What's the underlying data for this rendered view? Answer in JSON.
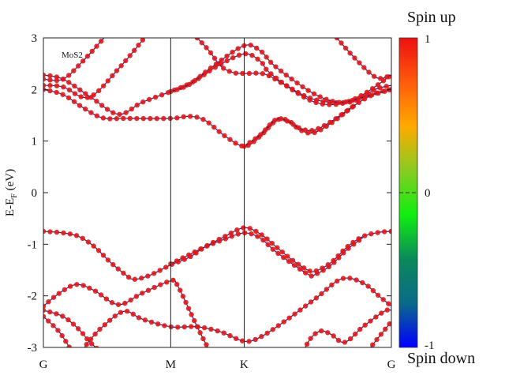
{
  "chart_data": {
    "type": "line",
    "title": "",
    "annotation": "MoS2",
    "ylabel": "E-E",
    "ylabel_sub": "F",
    "ylabel_unit": "(eV)",
    "xlabel": "",
    "ylim": [
      -3,
      3
    ],
    "yticks": [
      "3",
      "2",
      "1",
      "0",
      "-1",
      "-2",
      "-3"
    ],
    "ytick_values": [
      3,
      2,
      1,
      0,
      -1,
      -2,
      -3
    ],
    "xlim": [
      0,
      1.577
    ],
    "high_symmetry_points": [
      {
        "label": "G",
        "k": 0
      },
      {
        "label": "M",
        "k": 0.577
      },
      {
        "label": "K",
        "k": 0.91
      },
      {
        "label": "G",
        "k": 1.577
      }
    ],
    "colorbar": {
      "top_label": "Spin up",
      "bottom_label": "Spin down",
      "ticks": [
        "1",
        "0",
        "-1"
      ],
      "tick_values": [
        1,
        0,
        -1
      ],
      "range": [
        -1,
        1
      ],
      "colors": [
        "#0000ff",
        "#0a6a8a",
        "#0a8a5a",
        "#10ee10",
        "#88cc20",
        "#ffaa00",
        "#ff5a0a",
        "#ee1010"
      ]
    },
    "marker_color": "#e01818",
    "line_color": "#20208a",
    "bands": [
      {
        "name": "cb1",
        "points": [
          [
            0,
            2.0
          ],
          [
            0.089,
            1.9
          ],
          [
            0.179,
            1.65
          ],
          [
            0.268,
            1.45
          ],
          [
            0.375,
            1.44
          ],
          [
            0.577,
            1.44
          ],
          [
            0.662,
            1.48
          ],
          [
            0.733,
            1.4
          ],
          [
            0.822,
            1.1
          ],
          [
            0.91,
            0.9
          ],
          [
            0.983,
            1.1
          ],
          [
            1.055,
            1.4
          ],
          [
            1.109,
            1.4
          ],
          [
            1.162,
            1.22
          ],
          [
            1.223,
            1.16
          ],
          [
            1.305,
            1.35
          ],
          [
            1.413,
            1.7
          ],
          [
            1.502,
            1.92
          ],
          [
            1.577,
            2.0
          ]
        ]
      },
      {
        "name": "cb1-split",
        "points": [
          [
            0.91,
            0.9
          ],
          [
            0.983,
            1.12
          ],
          [
            1.055,
            1.42
          ],
          [
            1.109,
            1.38
          ],
          [
            1.162,
            1.25
          ],
          [
            1.223,
            1.21
          ],
          [
            1.305,
            1.38
          ],
          [
            1.413,
            1.7
          ]
        ]
      },
      {
        "name": "cb2",
        "points": [
          [
            0,
            2.08
          ],
          [
            0.089,
            2.05
          ],
          [
            0.207,
            1.85
          ],
          [
            0.34,
            2.4
          ],
          [
            0.458,
            3.0
          ]
        ]
      },
      {
        "name": "cb3",
        "points": [
          [
            0,
            2.28
          ],
          [
            0.089,
            2.2
          ],
          [
            0.215,
            1.85
          ],
          [
            0.34,
            1.52
          ],
          [
            0.447,
            1.75
          ],
          [
            0.577,
            1.96
          ],
          [
            0.679,
            2.15
          ],
          [
            0.787,
            2.45
          ],
          [
            0.91,
            2.69
          ],
          [
            0.983,
            2.55
          ],
          [
            1.019,
            2.35
          ],
          [
            1.126,
            2.0
          ],
          [
            1.234,
            1.75
          ],
          [
            1.341,
            1.72
          ],
          [
            1.448,
            1.9
          ],
          [
            1.577,
            2.28
          ]
        ]
      },
      {
        "name": "cb4",
        "points": [
          [
            0.697,
            3.0
          ],
          [
            0.751,
            2.75
          ],
          [
            0.805,
            2.45
          ],
          [
            0.858,
            2.33
          ],
          [
            0.91,
            2.31
          ],
          [
            1.001,
            2.3
          ],
          [
            1.091,
            2.1
          ],
          [
            1.198,
            1.85
          ],
          [
            1.305,
            1.75
          ],
          [
            1.413,
            1.78
          ],
          [
            1.502,
            2.0
          ],
          [
            1.577,
            2.08
          ]
        ]
      },
      {
        "name": "cb5",
        "points": [
          [
            0,
            2.2
          ],
          [
            0.089,
            2.2
          ],
          [
            0.179,
            2.55
          ],
          [
            0.275,
            3.0
          ]
        ]
      },
      {
        "name": "cb6",
        "points": [
          [
            1.33,
            3.0
          ],
          [
            1.413,
            2.6
          ],
          [
            1.509,
            2.23
          ],
          [
            1.577,
            2.28
          ]
        ]
      },
      {
        "name": "cb7",
        "points": [
          [
            0.577,
            1.96
          ],
          [
            0.662,
            2.1
          ],
          [
            0.769,
            2.45
          ],
          [
            0.91,
            2.85
          ],
          [
            0.983,
            2.75
          ],
          [
            1.037,
            2.5
          ],
          [
            1.126,
            2.2
          ],
          [
            1.234,
            1.9
          ],
          [
            1.341,
            1.75
          ],
          [
            1.448,
            1.85
          ],
          [
            1.577,
            2.0
          ]
        ]
      },
      {
        "name": "vb1",
        "points": [
          [
            0,
            -0.75
          ],
          [
            0.089,
            -0.78
          ],
          [
            0.161,
            -0.85
          ],
          [
            0.232,
            -1.05
          ],
          [
            0.304,
            -1.35
          ],
          [
            0.375,
            -1.6
          ],
          [
            0.411,
            -1.68
          ],
          [
            0.483,
            -1.6
          ],
          [
            0.577,
            -1.4
          ],
          [
            0.662,
            -1.25
          ],
          [
            0.733,
            -1.05
          ],
          [
            0.822,
            -0.85
          ],
          [
            0.91,
            -0.68
          ],
          [
            0.983,
            -0.8
          ],
          [
            1.055,
            -1.05
          ],
          [
            1.126,
            -1.3
          ],
          [
            1.198,
            -1.5
          ],
          [
            1.234,
            -1.52
          ],
          [
            1.305,
            -1.35
          ],
          [
            1.377,
            -1.05
          ],
          [
            1.448,
            -0.85
          ],
          [
            1.52,
            -0.77
          ],
          [
            1.577,
            -0.75
          ]
        ]
      },
      {
        "name": "vb2",
        "points": [
          [
            0.577,
            -1.38
          ],
          [
            0.662,
            -1.2
          ],
          [
            0.733,
            -1.05
          ],
          [
            0.822,
            -0.9
          ],
          [
            0.91,
            -0.78
          ],
          [
            0.983,
            -0.88
          ],
          [
            1.055,
            -1.15
          ],
          [
            1.198,
            -1.58
          ],
          [
            1.234,
            -1.58
          ],
          [
            1.305,
            -1.4
          ],
          [
            1.377,
            -1.1
          ],
          [
            1.448,
            -0.87
          ]
        ]
      },
      {
        "name": "vb3",
        "points": [
          [
            0,
            -2.2
          ],
          [
            0.072,
            -1.95
          ],
          [
            0.15,
            -1.78
          ],
          [
            0.232,
            -1.9
          ],
          [
            0.34,
            -2.17
          ],
          [
            0.447,
            -1.95
          ],
          [
            0.577,
            -1.71
          ],
          [
            0.608,
            -1.8
          ],
          [
            0.697,
            -2.6
          ],
          [
            0.751,
            -3.05
          ]
        ]
      },
      {
        "name": "vb4",
        "points": [
          [
            0,
            -2.28
          ],
          [
            0.089,
            -2.4
          ],
          [
            0.161,
            -2.65
          ],
          [
            0.207,
            -2.88
          ],
          [
            0.25,
            -3.05
          ]
        ]
      },
      {
        "name": "vb5",
        "points": [
          [
            0.179,
            -3.05
          ],
          [
            0.207,
            -2.88
          ],
          [
            0.268,
            -2.6
          ],
          [
            0.365,
            -2.3
          ],
          [
            0.447,
            -2.45
          ],
          [
            0.577,
            -2.6
          ],
          [
            0.697,
            -2.6
          ],
          [
            0.805,
            -2.7
          ],
          [
            0.91,
            -2.88
          ],
          [
            0.983,
            -2.8
          ],
          [
            1.091,
            -2.5
          ],
          [
            1.234,
            -2.05
          ],
          [
            1.352,
            -1.67
          ],
          [
            1.448,
            -1.75
          ],
          [
            1.52,
            -2.0
          ],
          [
            1.577,
            -2.2
          ]
        ]
      },
      {
        "name": "vb6",
        "points": [
          [
            0,
            -2.4
          ],
          [
            0.072,
            -2.7
          ],
          [
            0.125,
            -3.05
          ]
        ]
      },
      {
        "name": "vb7",
        "points": [
          [
            1.18,
            -3.05
          ],
          [
            1.216,
            -2.8
          ],
          [
            1.259,
            -2.68
          ],
          [
            1.305,
            -2.75
          ],
          [
            1.366,
            -2.9
          ],
          [
            1.448,
            -2.6
          ],
          [
            1.545,
            -2.3
          ],
          [
            1.577,
            -2.28
          ]
        ]
      },
      {
        "name": "vb8",
        "points": [
          [
            1.473,
            -3.05
          ],
          [
            1.52,
            -2.8
          ],
          [
            1.577,
            -2.5
          ]
        ]
      }
    ]
  }
}
